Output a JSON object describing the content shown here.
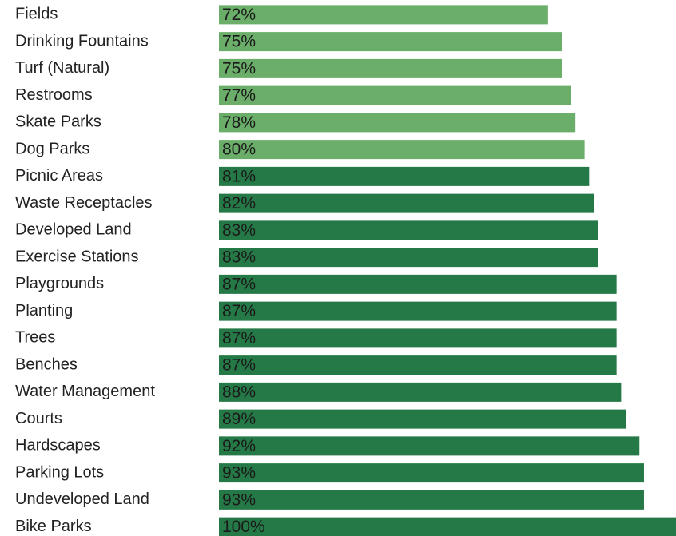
{
  "chart_data": {
    "type": "bar",
    "orientation": "horizontal",
    "categories": [
      "Fields",
      "Drinking Fountains",
      "Turf (Natural)",
      "Restrooms",
      "Skate Parks",
      "Dog Parks",
      "Picnic Areas",
      "Waste Receptacles",
      "Developed Land",
      "Exercise Stations",
      "Playgrounds",
      "Planting",
      "Trees",
      "Benches",
      "Water Management",
      "Courts",
      "Hardscapes",
      "Parking Lots",
      "Undeveloped Land",
      "Bike Parks"
    ],
    "values": [
      72,
      75,
      75,
      77,
      78,
      80,
      81,
      82,
      83,
      83,
      87,
      87,
      87,
      87,
      88,
      89,
      92,
      93,
      93,
      100
    ],
    "value_labels": [
      "72%",
      "75%",
      "75%",
      "77%",
      "78%",
      "80%",
      "81%",
      "82%",
      "83%",
      "83%",
      "87%",
      "87%",
      "87%",
      "87%",
      "88%",
      "89%",
      "92%",
      "93%",
      "93%",
      "100%"
    ],
    "colors": [
      "#6aae69",
      "#6aae69",
      "#6aae69",
      "#6aae69",
      "#6aae69",
      "#6aae69",
      "#257946",
      "#257946",
      "#257946",
      "#257946",
      "#257946",
      "#257946",
      "#257946",
      "#257946",
      "#257946",
      "#257946",
      "#257946",
      "#257946",
      "#257946",
      "#257946"
    ],
    "xlim": [
      0,
      100
    ]
  }
}
